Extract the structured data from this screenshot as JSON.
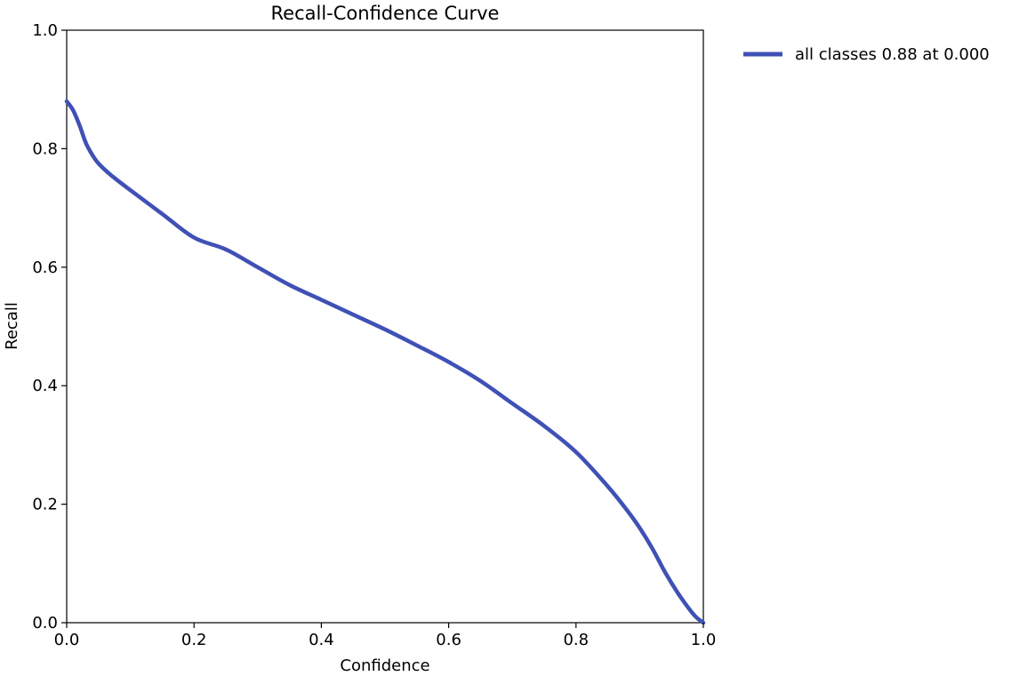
{
  "chart_data": {
    "type": "line",
    "title": "Recall-Confidence Curve",
    "xlabel": "Confidence",
    "ylabel": "Recall",
    "xlim": [
      0.0,
      1.0
    ],
    "ylim": [
      0.0,
      1.0
    ],
    "xticks": [
      "0.0",
      "0.2",
      "0.4",
      "0.6",
      "0.8",
      "1.0"
    ],
    "yticks": [
      "0.0",
      "0.2",
      "0.4",
      "0.6",
      "0.8",
      "1.0"
    ],
    "grid": false,
    "legend_position": "outside-top-right",
    "series": [
      {
        "name": "all classes 0.88 at 0.000",
        "color": "#3f51b5",
        "x": [
          0.0,
          0.01,
          0.02,
          0.03,
          0.04,
          0.05,
          0.07,
          0.1,
          0.15,
          0.2,
          0.25,
          0.3,
          0.35,
          0.4,
          0.45,
          0.5,
          0.55,
          0.6,
          0.65,
          0.7,
          0.75,
          0.8,
          0.85,
          0.88,
          0.9,
          0.92,
          0.94,
          0.96,
          0.98,
          0.99,
          1.0
        ],
        "y": [
          0.88,
          0.865,
          0.84,
          0.81,
          0.79,
          0.775,
          0.755,
          0.73,
          0.69,
          0.65,
          0.63,
          0.6,
          0.57,
          0.545,
          0.52,
          0.495,
          0.468,
          0.44,
          0.408,
          0.37,
          0.332,
          0.288,
          0.23,
          0.19,
          0.16,
          0.125,
          0.085,
          0.05,
          0.02,
          0.008,
          0.0
        ]
      }
    ]
  }
}
